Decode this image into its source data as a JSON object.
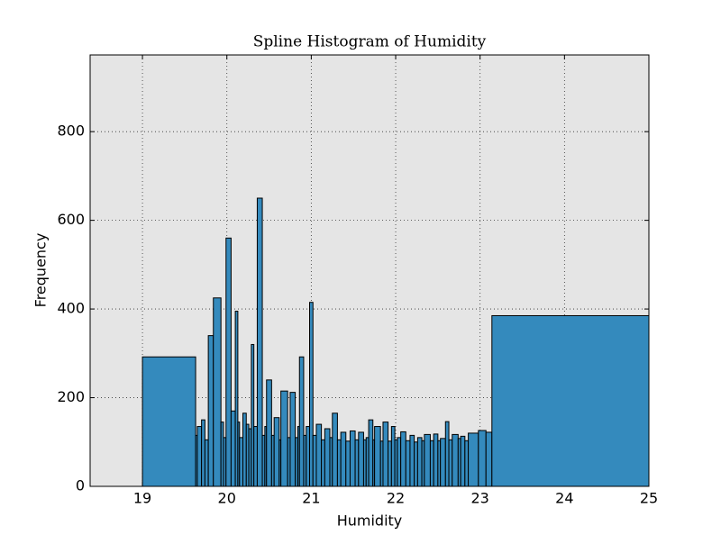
{
  "chart_data": {
    "type": "histogram",
    "title": "Spline Histogram of Humidity",
    "x_label": "Humidity",
    "y_label": "Frequency",
    "bins": [
      19.0,
      19.63,
      19.65,
      19.7,
      19.74,
      19.78,
      19.84,
      19.93,
      19.96,
      19.99,
      20.05,
      20.1,
      20.13,
      20.15,
      20.19,
      20.23,
      20.26,
      20.29,
      20.32,
      20.36,
      20.42,
      20.45,
      20.47,
      20.53,
      20.56,
      20.62,
      20.64,
      20.72,
      20.75,
      20.81,
      20.84,
      20.86,
      20.91,
      20.94,
      20.98,
      21.02,
      21.06,
      21.12,
      21.16,
      21.22,
      21.25,
      21.31,
      21.35,
      21.41,
      21.46,
      21.52,
      21.56,
      21.62,
      21.65,
      21.68,
      21.73,
      21.75,
      21.82,
      21.85,
      21.91,
      21.95,
      21.99,
      22.02,
      22.06,
      22.12,
      22.17,
      22.22,
      22.26,
      22.31,
      22.34,
      22.41,
      22.45,
      22.5,
      22.53,
      22.59,
      22.63,
      22.67,
      22.74,
      22.77,
      22.82,
      22.86,
      22.98,
      23.07,
      23.14,
      25.0
    ],
    "values": [
      292,
      115,
      135,
      150,
      105,
      340,
      425,
      145,
      110,
      560,
      170,
      395,
      145,
      110,
      165,
      140,
      130,
      320,
      135,
      650,
      115,
      135,
      240,
      115,
      155,
      105,
      215,
      110,
      212,
      110,
      135,
      292,
      115,
      135,
      415,
      115,
      140,
      105,
      130,
      110,
      165,
      105,
      122,
      102,
      125,
      105,
      122,
      105,
      110,
      150,
      105,
      135,
      102,
      145,
      102,
      135,
      105,
      110,
      123,
      103,
      115,
      100,
      110,
      103,
      117,
      103,
      118,
      103,
      108,
      146,
      105,
      117,
      108,
      113,
      103,
      120,
      126,
      122,
      385
    ],
    "color": "#348abd",
    "xlim": [
      18.38,
      25
    ],
    "ylim": [
      0,
      973
    ],
    "xticks": [
      19,
      20,
      21,
      22,
      23,
      24,
      25
    ],
    "yticks": [
      0,
      200,
      400,
      600,
      800
    ],
    "grid": true
  }
}
